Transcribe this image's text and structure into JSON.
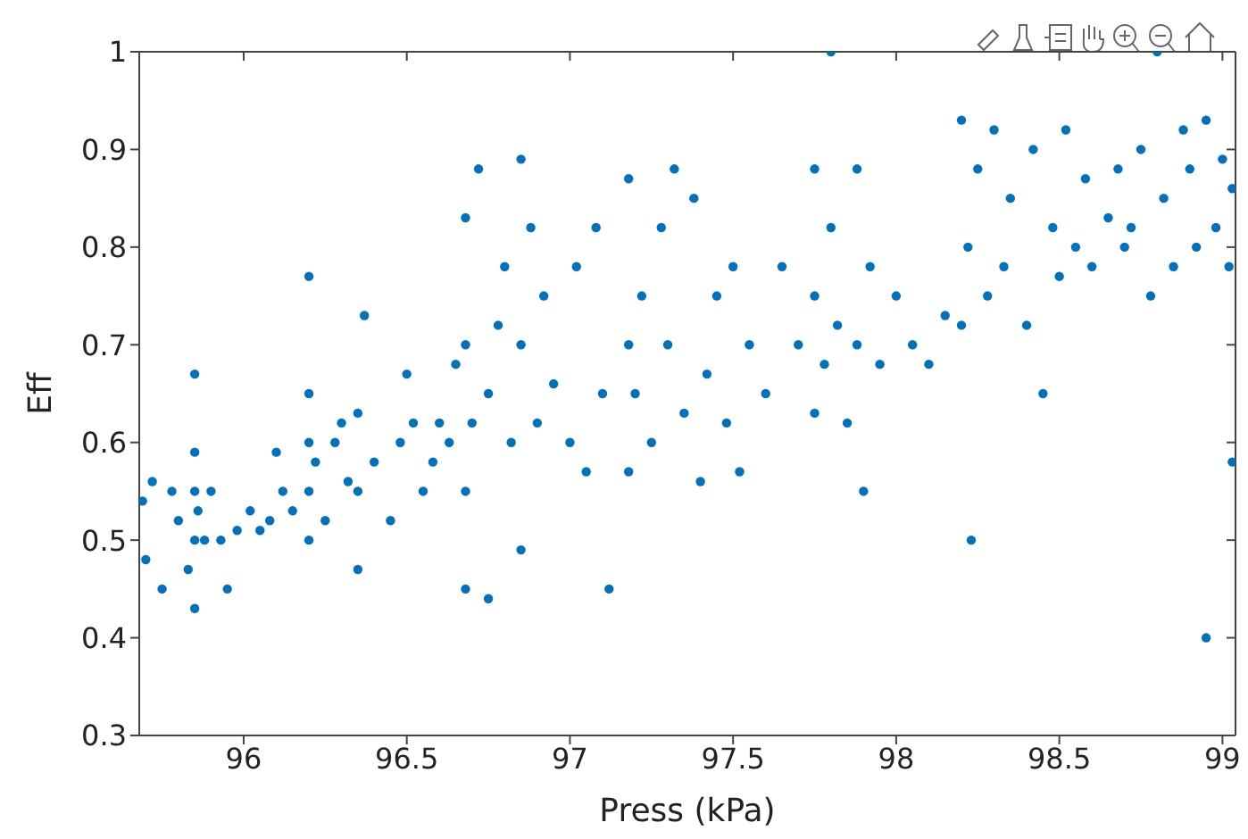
{
  "chart_data": {
    "type": "scatter",
    "xlabel": "Press (kPa)",
    "ylabel": "Eff",
    "xlim": [
      95.68,
      99.04
    ],
    "ylim": [
      0.3,
      1
    ],
    "xticks": [
      96,
      96.5,
      97,
      97.5,
      98,
      98.5,
      99
    ],
    "yticks": [
      0.3,
      0.4,
      0.5,
      0.6,
      0.7,
      0.8,
      0.9,
      1
    ],
    "marker": "circle",
    "series": [
      {
        "color": "#0072bd",
        "x": [
          95.69,
          95.7,
          95.72,
          95.75,
          95.8,
          95.78,
          95.83,
          95.85,
          95.85,
          95.85,
          95.85,
          95.85,
          95.86,
          95.88,
          95.9,
          95.95,
          95.93,
          95.98,
          96.02,
          96.05,
          96.08,
          96.1,
          96.12,
          96.15,
          96.2,
          96.2,
          96.2,
          96.2,
          96.2,
          96.22,
          96.25,
          96.28,
          96.3,
          96.32,
          96.35,
          96.35,
          96.35,
          96.37,
          96.4,
          96.45,
          96.48,
          96.5,
          96.52,
          96.55,
          96.58,
          96.6,
          96.63,
          96.65,
          96.68,
          96.68,
          96.68,
          96.68,
          96.7,
          96.72,
          96.75,
          96.75,
          96.78,
          96.8,
          96.82,
          96.85,
          96.85,
          96.85,
          96.88,
          96.9,
          96.92,
          96.95,
          97.0,
          97.02,
          97.05,
          97.08,
          97.1,
          97.12,
          97.18,
          97.18,
          97.18,
          97.2,
          97.22,
          97.25,
          97.28,
          97.3,
          97.32,
          97.35,
          97.38,
          97.4,
          97.42,
          97.45,
          97.48,
          97.5,
          97.52,
          97.55,
          97.6,
          97.65,
          97.7,
          97.75,
          97.75,
          97.75,
          97.78,
          97.8,
          97.8,
          97.82,
          97.85,
          97.88,
          97.88,
          97.9,
          97.92,
          97.95,
          98.0,
          98.05,
          98.1,
          98.15,
          98.2,
          98.2,
          98.22,
          98.23,
          98.25,
          98.28,
          98.3,
          98.33,
          98.35,
          98.4,
          98.42,
          98.45,
          98.48,
          98.5,
          98.52,
          98.55,
          98.58,
          98.6,
          98.65,
          98.68,
          98.7,
          98.72,
          98.75,
          98.78,
          98.8,
          98.82,
          98.85,
          98.88,
          98.9,
          98.92,
          98.95,
          98.95,
          98.98,
          99.0,
          99.02,
          99.03,
          99.03
        ],
        "values": [
          0.54,
          0.48,
          0.56,
          0.45,
          0.52,
          0.55,
          0.47,
          0.43,
          0.5,
          0.55,
          0.59,
          0.67,
          0.53,
          0.5,
          0.55,
          0.45,
          0.5,
          0.51,
          0.53,
          0.51,
          0.52,
          0.59,
          0.55,
          0.53,
          0.5,
          0.55,
          0.6,
          0.65,
          0.77,
          0.58,
          0.52,
          0.6,
          0.62,
          0.56,
          0.47,
          0.55,
          0.63,
          0.73,
          0.58,
          0.52,
          0.6,
          0.67,
          0.62,
          0.55,
          0.58,
          0.62,
          0.6,
          0.68,
          0.45,
          0.55,
          0.7,
          0.83,
          0.62,
          0.88,
          0.65,
          0.44,
          0.72,
          0.78,
          0.6,
          0.49,
          0.7,
          0.89,
          0.82,
          0.62,
          0.75,
          0.66,
          0.6,
          0.78,
          0.57,
          0.82,
          0.65,
          0.45,
          0.57,
          0.7,
          0.87,
          0.65,
          0.75,
          0.6,
          0.82,
          0.7,
          0.88,
          0.63,
          0.85,
          0.56,
          0.67,
          0.75,
          0.62,
          0.78,
          0.57,
          0.7,
          0.65,
          0.78,
          0.7,
          0.63,
          0.75,
          0.88,
          0.68,
          1.0,
          0.82,
          0.72,
          0.62,
          0.88,
          0.7,
          0.55,
          0.78,
          0.68,
          0.75,
          0.7,
          0.68,
          0.73,
          0.72,
          0.93,
          0.8,
          0.5,
          0.88,
          0.75,
          0.92,
          0.78,
          0.85,
          0.72,
          0.9,
          0.65,
          0.82,
          0.77,
          0.92,
          0.8,
          0.87,
          0.78,
          0.83,
          0.88,
          0.8,
          0.82,
          0.9,
          0.75,
          1.0,
          0.85,
          0.78,
          0.92,
          0.88,
          0.8,
          0.4,
          0.93,
          0.82,
          0.89,
          0.78,
          0.58,
          0.86
        ]
      }
    ]
  }
}
